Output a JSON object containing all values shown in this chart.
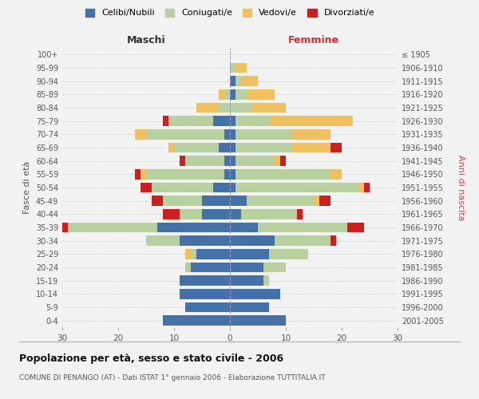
{
  "age_groups": [
    "0-4",
    "5-9",
    "10-14",
    "15-19",
    "20-24",
    "25-29",
    "30-34",
    "35-39",
    "40-44",
    "45-49",
    "50-54",
    "55-59",
    "60-64",
    "65-69",
    "70-74",
    "75-79",
    "80-84",
    "85-89",
    "90-94",
    "95-99",
    "100+"
  ],
  "birth_years": [
    "2001-2005",
    "1996-2000",
    "1991-1995",
    "1986-1990",
    "1981-1985",
    "1976-1980",
    "1971-1975",
    "1966-1970",
    "1961-1965",
    "1956-1960",
    "1951-1955",
    "1946-1950",
    "1941-1945",
    "1936-1940",
    "1931-1935",
    "1926-1930",
    "1921-1925",
    "1916-1920",
    "1911-1915",
    "1906-1910",
    "≤ 1905"
  ],
  "maschi": {
    "celibi": [
      12,
      8,
      9,
      9,
      7,
      6,
      9,
      13,
      5,
      5,
      3,
      1,
      1,
      2,
      1,
      3,
      0,
      0,
      0,
      0,
      0
    ],
    "coniugati": [
      0,
      0,
      0,
      0,
      1,
      1,
      6,
      16,
      4,
      7,
      11,
      14,
      7,
      8,
      14,
      8,
      2,
      1,
      0,
      0,
      0
    ],
    "vedovi": [
      0,
      0,
      0,
      0,
      0,
      1,
      0,
      0,
      0,
      0,
      0,
      1,
      0,
      1,
      2,
      0,
      4,
      1,
      0,
      0,
      0
    ],
    "divorziati": [
      0,
      0,
      0,
      0,
      0,
      0,
      0,
      1,
      3,
      2,
      2,
      1,
      1,
      0,
      0,
      1,
      0,
      0,
      0,
      0,
      0
    ]
  },
  "femmine": {
    "nubili": [
      10,
      7,
      9,
      6,
      6,
      7,
      8,
      5,
      2,
      3,
      1,
      1,
      1,
      1,
      1,
      1,
      0,
      1,
      1,
      0,
      0
    ],
    "coniugate": [
      0,
      0,
      0,
      1,
      4,
      7,
      10,
      16,
      10,
      12,
      22,
      17,
      7,
      10,
      10,
      6,
      4,
      2,
      1,
      1,
      0
    ],
    "vedove": [
      0,
      0,
      0,
      0,
      0,
      0,
      0,
      0,
      0,
      1,
      1,
      2,
      1,
      7,
      7,
      15,
      6,
      5,
      3,
      2,
      0
    ],
    "divorziate": [
      0,
      0,
      0,
      0,
      0,
      0,
      1,
      3,
      1,
      2,
      1,
      0,
      1,
      2,
      0,
      0,
      0,
      0,
      0,
      0,
      0
    ]
  },
  "colors": {
    "celibi": "#4472a8",
    "coniugati": "#b8cfa0",
    "vedovi": "#f0c060",
    "divorziati": "#cc2020"
  },
  "xlim": 30,
  "title": "Popolazione per età, sesso e stato civile - 2006",
  "subtitle": "COMUNE DI PENANGO (AT) - Dati ISTAT 1° gennaio 2006 - Elaborazione TUTTITALIA.IT",
  "ylabel_left": "Fasce di età",
  "ylabel_right": "Anni di nascita",
  "xlabel_left": "Maschi",
  "xlabel_right": "Femmine",
  "legend_labels": [
    "Celibi/Nubili",
    "Coniugati/e",
    "Vedovi/e",
    "Divorziati/e"
  ],
  "bg_color": "#f2f2f2"
}
